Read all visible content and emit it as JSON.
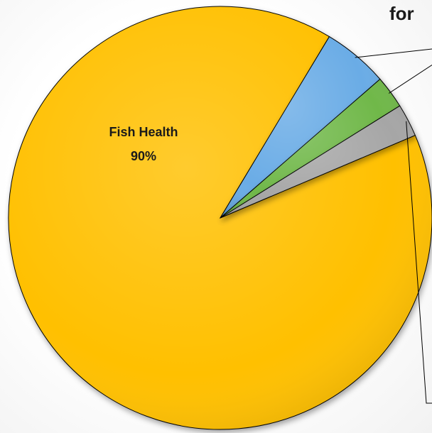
{
  "chart_data": {
    "type": "pie",
    "title_fragment": "for",
    "slices": [
      {
        "label": "Fish Health",
        "value": 90,
        "color": "#ffc000",
        "label_text": "Fish Health",
        "value_text": "90%"
      },
      {
        "label": "",
        "value": 5,
        "color": "#6aace6",
        "label_text": "",
        "value_text": ""
      },
      {
        "label": "",
        "value": 2.5,
        "color": "#70b84a",
        "label_text": "",
        "value_text": ""
      },
      {
        "label": "",
        "value": 2.5,
        "color": "#a6a6a6",
        "label_text": "",
        "value_text": ""
      }
    ],
    "start_angle_deg": 337,
    "direction": "clockwise",
    "legend": "none"
  }
}
